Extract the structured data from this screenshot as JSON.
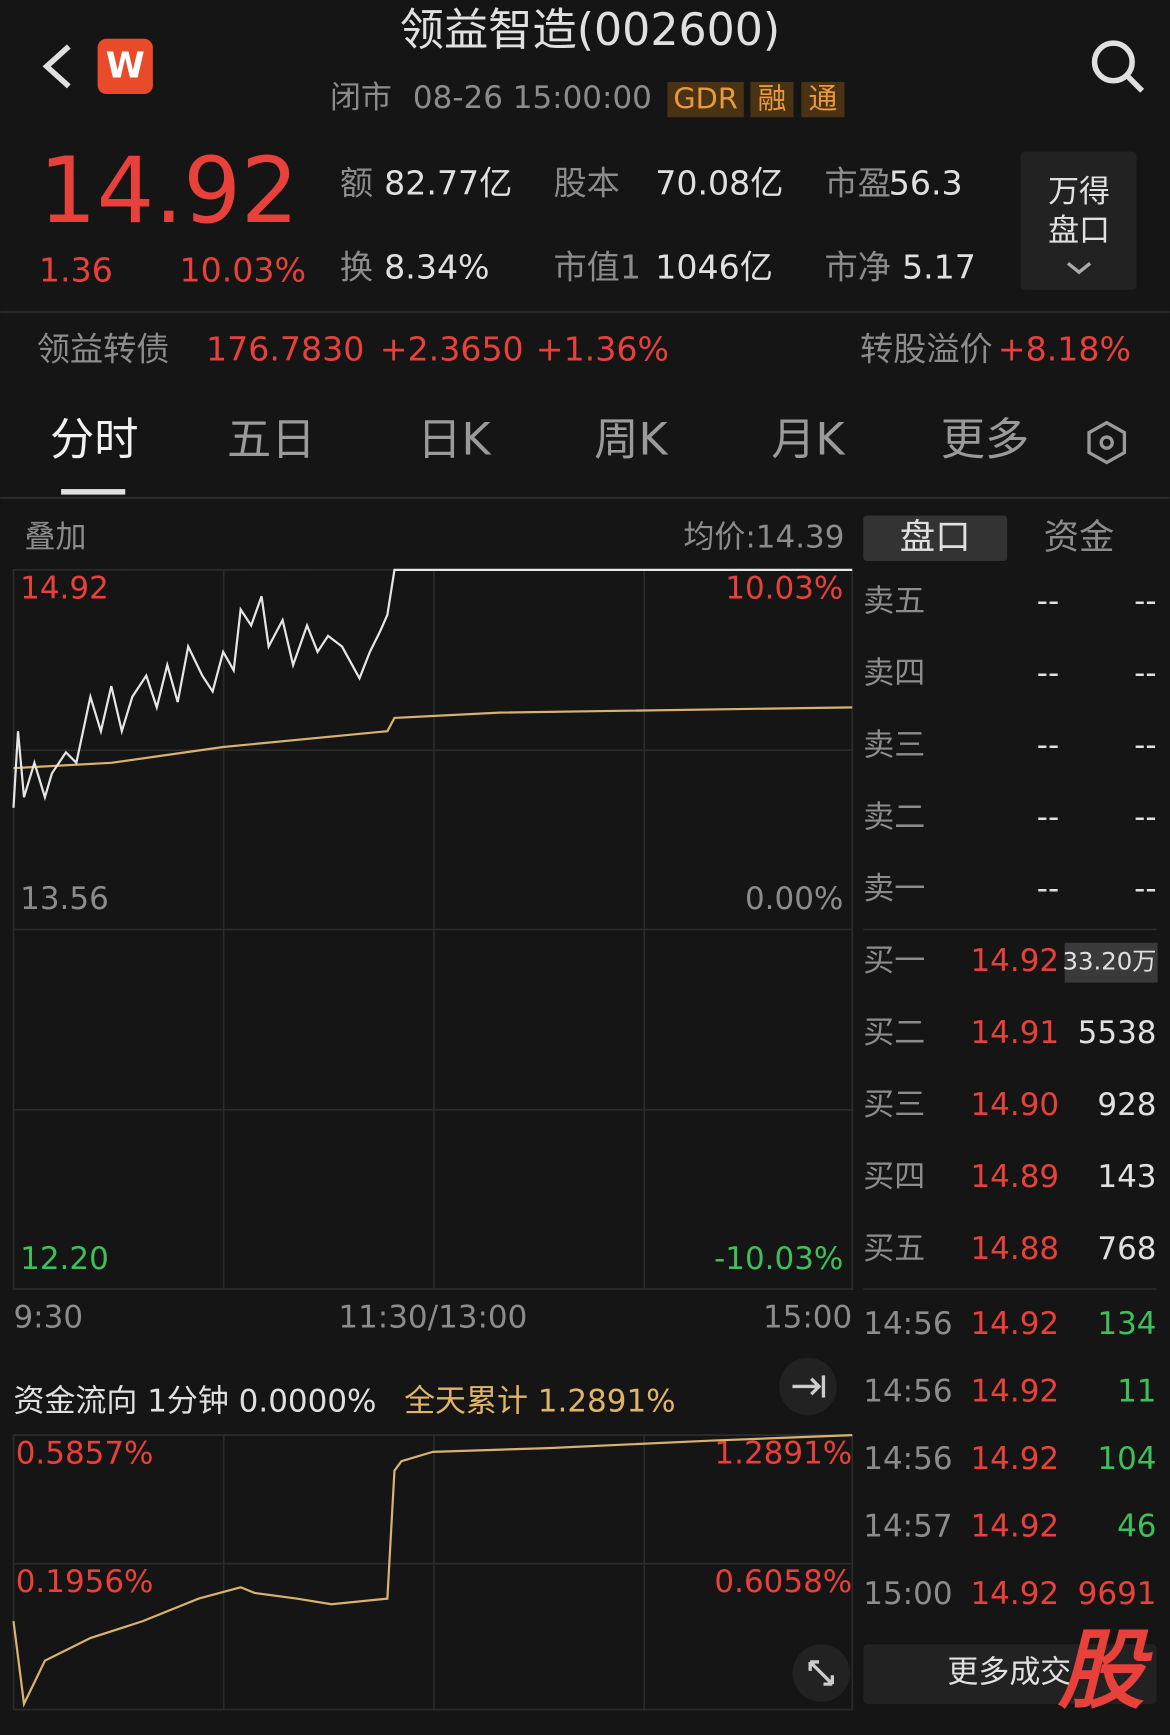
{
  "header": {
    "title": "领益智造(002600)",
    "status": "闭市",
    "time": "08-26 15:00:00",
    "tags": [
      "GDR",
      "融",
      "通"
    ]
  },
  "quote": {
    "price": "14.92",
    "change": "1.36",
    "change_pct": "10.03%",
    "stats": [
      {
        "label": "额",
        "value": "82.77亿"
      },
      {
        "label": "股本",
        "value": "70.08亿"
      },
      {
        "label": "市盈",
        "value": "56.3"
      },
      {
        "label": "换",
        "value": "8.34%"
      },
      {
        "label": "市值1",
        "value": "1046亿"
      },
      {
        "label": "市净",
        "value": "5.17"
      }
    ],
    "button": [
      "万得",
      "盘口"
    ]
  },
  "bond": {
    "name": "领益转债",
    "price": "176.7830",
    "change": "+2.3650",
    "change_pct": "+1.36%",
    "premium_label": "转股溢价",
    "premium": "+8.18%"
  },
  "tabs": [
    "分时",
    "五日",
    "日K",
    "周K",
    "月K",
    "更多"
  ],
  "intraday": {
    "overlay": "叠加",
    "avg_label": "均价:14.39",
    "ylim": [
      12.2,
      14.92
    ],
    "yticks": [
      14.92,
      13.56,
      {
        "value": 12.2,
        "label": "12.20"
      }
    ],
    "right_labels": [
      "10.03%",
      "0.00%",
      "-10.03%"
    ],
    "xlim": [
      0,
      240
    ],
    "xticks": [
      {
        "value": 0,
        "label": "9:30"
      },
      {
        "value": 120,
        "label": "11:30/13:00"
      },
      {
        "value": 240,
        "label": "15:00"
      }
    ],
    "price": {
      "color": "#e6e6e6",
      "x": [
        0,
        1.3,
        3,
        6,
        9,
        11,
        15,
        18,
        22,
        25,
        28,
        31,
        34,
        38,
        41,
        44,
        47,
        50,
        54,
        57,
        60,
        63,
        65,
        68,
        71,
        73,
        77,
        80,
        84,
        87,
        90,
        94,
        99,
        102,
        105,
        107,
        109,
        240
      ],
      "values": [
        14.02,
        14.31,
        14.06,
        14.19,
        14.06,
        14.15,
        14.23,
        14.19,
        14.44,
        14.31,
        14.48,
        14.31,
        14.44,
        14.52,
        14.4,
        14.56,
        14.42,
        14.63,
        14.52,
        14.46,
        14.61,
        14.54,
        14.77,
        14.71,
        14.82,
        14.63,
        14.73,
        14.56,
        14.71,
        14.61,
        14.67,
        14.63,
        14.51,
        14.61,
        14.69,
        14.75,
        14.92,
        14.92
      ]
    },
    "avg": {
      "color": "#d9b26f",
      "x": [
        0,
        28,
        60,
        107,
        109,
        139,
        240
      ],
      "values": [
        14.17,
        14.19,
        14.25,
        14.31,
        14.36,
        14.38,
        14.4
      ]
    }
  },
  "flow": {
    "label": "资金流向 1分钟 0.0000%",
    "total": "全天累计 1.2891%",
    "left_labels": [
      "0.5857%",
      "0.1956%"
    ],
    "ylim": [
      -0.17,
      1.2891
    ],
    "yticks": [
      {
        "value": 1.2891,
        "label": "1.2891%"
      },
      {
        "value": 0.6058,
        "label": "0.6058%"
      }
    ],
    "xlim": [
      0,
      240
    ],
    "line": {
      "color": "#d9b26f",
      "x": [
        0,
        3,
        9,
        22,
        37,
        53,
        65,
        69,
        81,
        91,
        107,
        109,
        111,
        120,
        153,
        200,
        240
      ],
      "values": [
        0.3,
        -0.14,
        0.09,
        0.21,
        0.3,
        0.42,
        0.48,
        0.45,
        0.42,
        0.39,
        0.42,
        1.1,
        1.15,
        1.2,
        1.22,
        1.26,
        1.2891
      ]
    }
  },
  "book": {
    "tabs": [
      "盘口",
      "资金"
    ],
    "sells": [
      [
        "卖五",
        "--",
        "--"
      ],
      [
        "卖四",
        "--",
        "--"
      ],
      [
        "卖三",
        "--",
        "--"
      ],
      [
        "卖二",
        "--",
        "--"
      ],
      [
        "卖一",
        "--",
        "--"
      ]
    ],
    "buys": [
      [
        "买一",
        "14.92",
        "33.20万"
      ],
      [
        "买二",
        "14.91",
        "5538"
      ],
      [
        "买三",
        "14.90",
        "928"
      ],
      [
        "买四",
        "14.89",
        "143"
      ],
      [
        "买五",
        "14.88",
        "768"
      ]
    ],
    "trades": [
      {
        "time": "14:56",
        "price": "14.92",
        "vol": "134",
        "color": "#3fbf5a"
      },
      {
        "time": "14:56",
        "price": "14.92",
        "vol": "11",
        "color": "#3fbf5a"
      },
      {
        "time": "14:56",
        "price": "14.92",
        "vol": "104",
        "color": "#3fbf5a"
      },
      {
        "time": "14:57",
        "price": "14.92",
        "vol": "46",
        "color": "#3fbf5a"
      },
      {
        "time": "15:00",
        "price": "14.92",
        "vol": "9691",
        "color": "#e8403a"
      }
    ],
    "more": "更多成交"
  },
  "watermark": "股"
}
